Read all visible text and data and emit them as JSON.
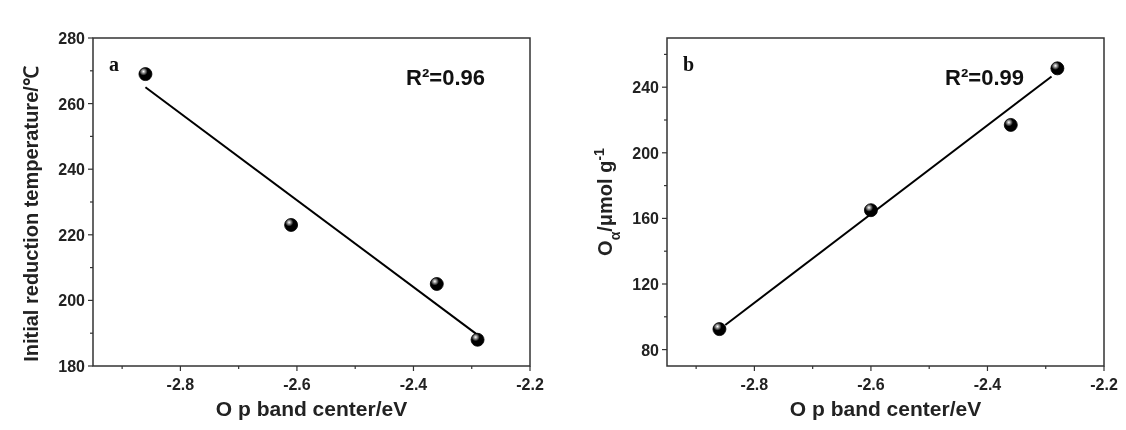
{
  "chart_data": [
    {
      "type": "scatter",
      "xlabel": "O p band center/eV",
      "ylabel": "Initial reduction temperature/℃",
      "annotations": [
        "a",
        "R²=0.96"
      ],
      "xlim": [
        -2.95,
        -2.2
      ],
      "xticks": [
        {
          "value": -2.9,
          "label": null
        },
        -2.8,
        {
          "value": -2.7,
          "label": null
        },
        -2.6,
        {
          "value": -2.5,
          "label": null
        },
        -2.4,
        {
          "value": -2.3,
          "label": null
        },
        -2.2
      ],
      "ylim": [
        180,
        280
      ],
      "yticks": [
        180,
        {
          "value": 190,
          "label": null
        },
        200,
        {
          "value": 210,
          "label": null
        },
        220,
        {
          "value": 230,
          "label": null
        },
        240,
        {
          "value": 250,
          "label": null
        },
        260,
        {
          "value": 270,
          "label": null
        },
        280
      ],
      "series": [
        {
          "color": "#000000",
          "marker": "circle",
          "x": [
            -2.86,
            -2.61,
            -2.36,
            -2.29
          ],
          "values": [
            269,
            223,
            205,
            188
          ]
        },
        {
          "type": "line",
          "color": "#000000",
          "line_style": "solid",
          "x": [
            -2.86,
            -2.29
          ],
          "values": [
            265,
            189.5
          ]
        }
      ]
    },
    {
      "type": "scatter",
      "xlabel": "O p band center/eV",
      "ylabel": "O$_{α}$/μmol g$^{-1}$",
      "annotations": [
        "b",
        "R²=0.99"
      ],
      "xlim": [
        -2.95,
        -2.2
      ],
      "xticks": [
        {
          "value": -2.9,
          "label": null
        },
        -2.8,
        {
          "value": -2.7,
          "label": null
        },
        -2.6,
        {
          "value": -2.5,
          "label": null
        },
        -2.4,
        {
          "value": -2.3,
          "label": null
        },
        -2.2
      ],
      "ylim": [
        70,
        270
      ],
      "yticks": [
        80,
        {
          "value": 100,
          "label": null
        },
        120,
        {
          "value": 140,
          "label": null
        },
        160,
        {
          "value": 180,
          "label": null
        },
        200,
        {
          "value": 220,
          "label": null
        },
        240,
        {
          "value": 260,
          "label": null
        }
      ],
      "series": [
        {
          "color": "#000000",
          "marker": "circle",
          "x": [
            -2.86,
            -2.6,
            -2.36,
            -2.28
          ],
          "values": [
            92.5,
            165,
            217,
            251.5
          ]
        },
        {
          "type": "line",
          "color": "#000000",
          "line_style": "solid",
          "x": [
            -2.85,
            -2.29
          ],
          "values": [
            95,
            246.5
          ]
        }
      ]
    }
  ]
}
